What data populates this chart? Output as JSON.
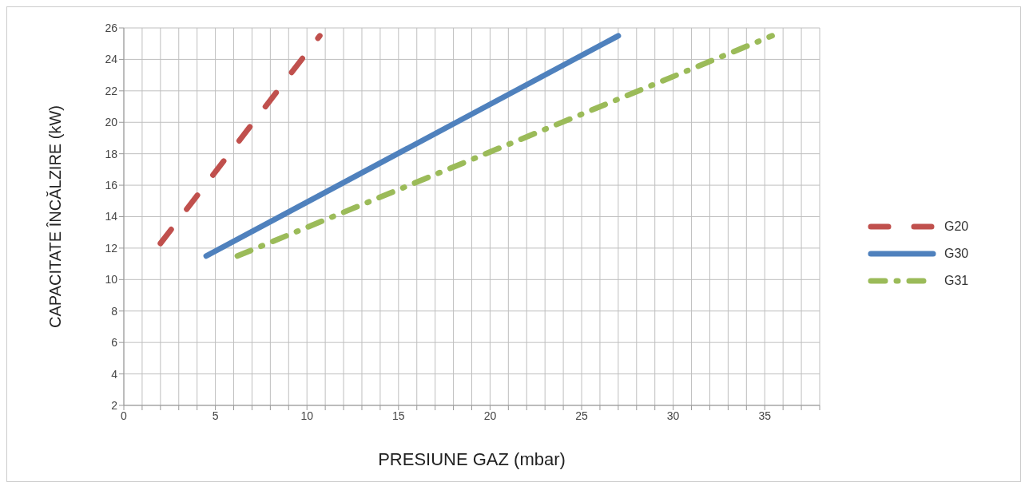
{
  "chart_data": {
    "type": "line",
    "xlabel": "PRESIUNE GAZ (mbar)",
    "ylabel": "CAPACITATE ÎNCĂLZIRE (kW)",
    "xlim": [
      0,
      38
    ],
    "xticks": [
      0,
      {
        "value": 1,
        "label": null
      },
      {
        "value": 2,
        "label": null
      },
      {
        "value": 3,
        "label": null
      },
      {
        "value": 4,
        "label": null
      },
      5,
      {
        "value": 6,
        "label": null
      },
      {
        "value": 7,
        "label": null
      },
      {
        "value": 8,
        "label": null
      },
      {
        "value": 9,
        "label": null
      },
      10,
      {
        "value": 11,
        "label": null
      },
      {
        "value": 12,
        "label": null
      },
      {
        "value": 13,
        "label": null
      },
      {
        "value": 14,
        "label": null
      },
      15,
      {
        "value": 16,
        "label": null
      },
      {
        "value": 17,
        "label": null
      },
      {
        "value": 18,
        "label": null
      },
      {
        "value": 19,
        "label": null
      },
      20,
      {
        "value": 21,
        "label": null
      },
      {
        "value": 22,
        "label": null
      },
      {
        "value": 23,
        "label": null
      },
      {
        "value": 24,
        "label": null
      },
      25,
      {
        "value": 26,
        "label": null
      },
      {
        "value": 27,
        "label": null
      },
      {
        "value": 28,
        "label": null
      },
      {
        "value": 29,
        "label": null
      },
      30,
      {
        "value": 31,
        "label": null
      },
      {
        "value": 32,
        "label": null
      },
      {
        "value": 33,
        "label": null
      },
      {
        "value": 34,
        "label": null
      },
      35,
      {
        "value": 36,
        "label": null
      },
      {
        "value": 37,
        "label": null
      },
      {
        "value": 38,
        "label": null
      }
    ],
    "ylim": [
      2,
      26
    ],
    "yticks": [
      2,
      4,
      6,
      8,
      10,
      12,
      14,
      16,
      18,
      20,
      22,
      24,
      26
    ],
    "grid": true,
    "legend": "right",
    "marker": "none",
    "series": [
      {
        "name": "G20",
        "color": "#c0504d",
        "line_style": "dashed",
        "x": [
          2,
          10.7
        ],
        "values": [
          12.3,
          25.5
        ]
      },
      {
        "name": "G30",
        "color": "#4f81bd",
        "line_style": "solid",
        "x": [
          4.5,
          27
        ],
        "values": [
          11.5,
          25.5
        ]
      },
      {
        "name": "G31",
        "color": "#9bbb59",
        "line_style": "dashed",
        "x": [
          6.2,
          35.4
        ],
        "values": [
          11.5,
          25.5
        ]
      }
    ]
  }
}
